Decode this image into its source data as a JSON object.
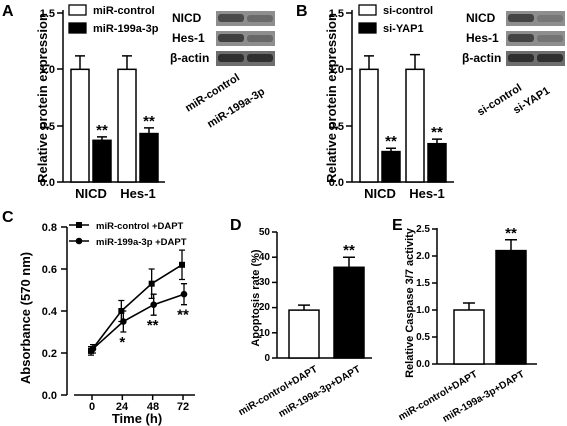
{
  "panels": {
    "A": {
      "letter": "A",
      "chart_data": {
        "type": "bar",
        "ylabel": "Relative protein expression",
        "categories": [
          "NICD",
          "Hes-1"
        ],
        "ylim": [
          0,
          1.5
        ],
        "yticks": [
          "0.0",
          "0.5",
          "1.0",
          "1.5"
        ],
        "series": [
          {
            "name": "miR-control",
            "fill": "#ffffff",
            "values": [
              1.0,
              1.0
            ],
            "errors": [
              0.12,
              0.12
            ]
          },
          {
            "name": "miR-199a-3p",
            "fill": "#000000",
            "values": [
              0.37,
              0.43
            ],
            "errors": [
              0.03,
              0.05
            ]
          }
        ],
        "significance": [
          {
            "category": "NICD",
            "label": "**"
          },
          {
            "category": "Hes-1",
            "label": "**"
          }
        ]
      },
      "blot": {
        "rows": [
          "NICD",
          "Hes-1",
          "β-actin"
        ],
        "lanes": [
          "miR-control",
          "miR-199a-3p"
        ]
      }
    },
    "B": {
      "letter": "B",
      "chart_data": {
        "type": "bar",
        "ylabel": "Relative protein expression",
        "categories": [
          "NICD",
          "Hes-1"
        ],
        "ylim": [
          0,
          1.5
        ],
        "yticks": [
          "0.0",
          "0.5",
          "1.0",
          "1.5"
        ],
        "series": [
          {
            "name": "si-control",
            "fill": "#ffffff",
            "values": [
              1.0,
              1.0
            ],
            "errors": [
              0.12,
              0.13
            ]
          },
          {
            "name": "si-YAP1",
            "fill": "#000000",
            "values": [
              0.27,
              0.34
            ],
            "errors": [
              0.03,
              0.04
            ]
          }
        ],
        "significance": [
          {
            "category": "NICD",
            "label": "**"
          },
          {
            "category": "Hes-1",
            "label": "**"
          }
        ]
      },
      "blot": {
        "rows": [
          "NICD",
          "Hes-1",
          "β-actin"
        ],
        "lanes": [
          "si-control",
          "si-YAP1"
        ]
      }
    },
    "C": {
      "letter": "C",
      "chart_data": {
        "type": "line",
        "xlabel": "Time (h)",
        "ylabel": "Absorbance (570 nm)",
        "x": [
          0,
          24,
          48,
          72
        ],
        "xticks": [
          "0",
          "24",
          "48",
          "72"
        ],
        "ylim": [
          0.0,
          0.8
        ],
        "yticks": [
          "0.0",
          "0.2",
          "0.4",
          "0.6",
          "0.8"
        ],
        "series": [
          {
            "name": "miR-control +DAPT",
            "marker": "square",
            "values": [
              0.21,
              0.4,
              0.53,
              0.62
            ],
            "errors": [
              0.02,
              0.05,
              0.07,
              0.07
            ]
          },
          {
            "name": "miR-199a-3p +DAPT",
            "marker": "circle",
            "values": [
              0.22,
              0.35,
              0.43,
              0.48
            ],
            "errors": [
              0.02,
              0.05,
              0.05,
              0.05
            ]
          }
        ],
        "significance": [
          {
            "x": 24,
            "label": "*"
          },
          {
            "x": 48,
            "label": "**"
          },
          {
            "x": 72,
            "label": "**"
          }
        ]
      }
    },
    "D": {
      "letter": "D",
      "chart_data": {
        "type": "bar",
        "ylabel": "Apoptosis rate (%)",
        "categories": [
          "miR-control+DAPT",
          "miR-199a-3p+DAPT"
        ],
        "fills": [
          "#ffffff",
          "#000000"
        ],
        "values": [
          19,
          36
        ],
        "errors": [
          2,
          4
        ],
        "ylim": [
          0,
          50
        ],
        "yticks": [
          "0",
          "10",
          "20",
          "30",
          "40",
          "50"
        ],
        "significance": [
          {
            "category": "miR-199a-3p+DAPT",
            "label": "**"
          }
        ]
      }
    },
    "E": {
      "letter": "E",
      "chart_data": {
        "type": "bar",
        "ylabel": "Relative Caspase 3/7 activity",
        "categories": [
          "miR-control+DAPT",
          "miR-199a-3p+DAPT"
        ],
        "fills": [
          "#ffffff",
          "#000000"
        ],
        "values": [
          1.0,
          2.1
        ],
        "errors": [
          0.13,
          0.2
        ],
        "ylim": [
          0,
          2.5
        ],
        "yticks": [
          "0.0",
          "0.5",
          "1.0",
          "1.5",
          "2.0",
          "2.5"
        ],
        "significance": [
          {
            "category": "miR-199a-3p+DAPT",
            "label": "**"
          }
        ]
      }
    }
  }
}
